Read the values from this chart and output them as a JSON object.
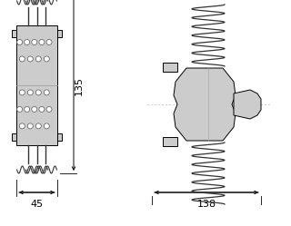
{
  "bg_color": "#ffffff",
  "line_color": "#000000",
  "fill_color": "#cccccc",
  "fill_light": "#d8d8d8",
  "dim_color": "#000000",
  "dim_135": "135",
  "dim_45": "45",
  "dim_138": "138",
  "fontsize": 8
}
